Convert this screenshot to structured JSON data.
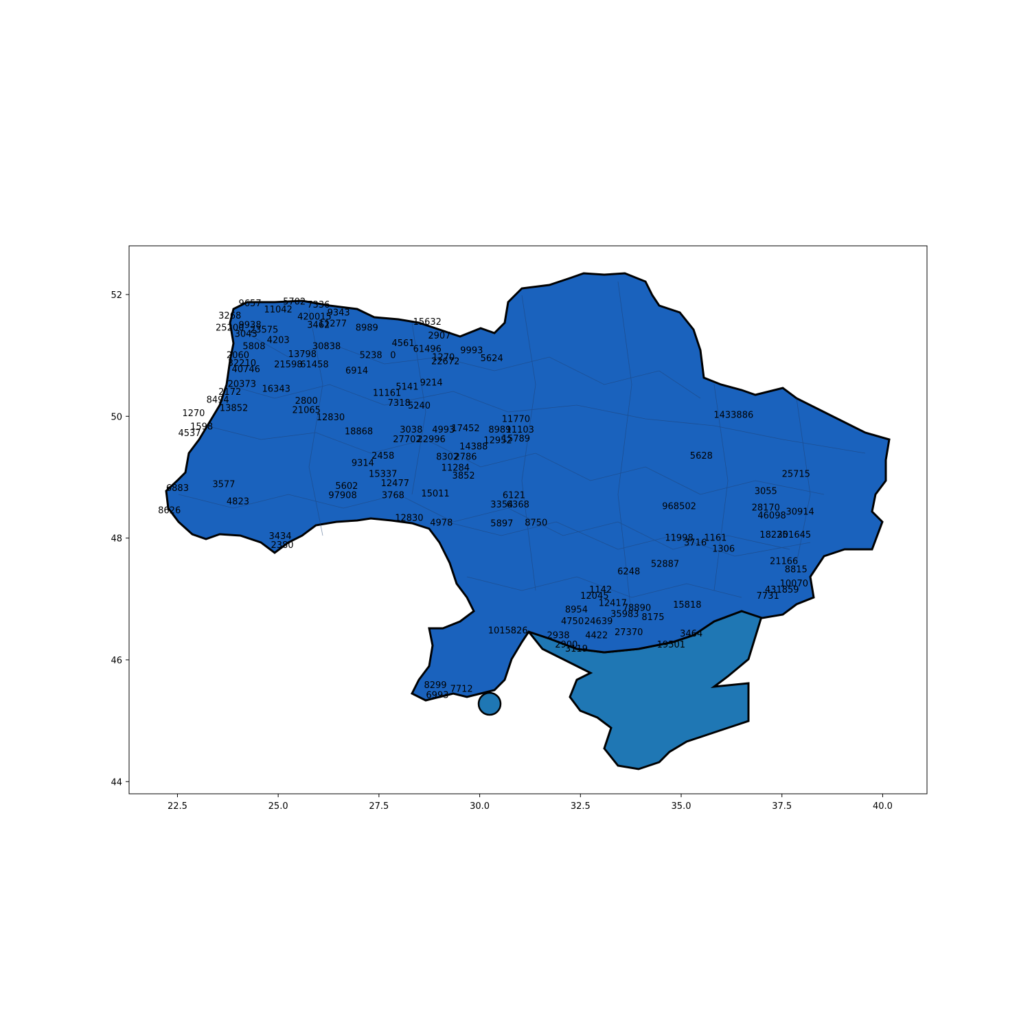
{
  "map": {
    "x_ticks": [
      "22.5",
      "25.0",
      "27.5",
      "30.0",
      "32.5",
      "35.0",
      "37.5",
      "40.0"
    ],
    "y_ticks": [
      "44",
      "46",
      "48",
      "50",
      "52"
    ],
    "xlim": [
      21.3,
      41.1
    ],
    "ylim": [
      43.8,
      52.8
    ],
    "colors": {
      "fill": "#1a62bd",
      "water_fill": "#1f77b4",
      "outline": "#000000"
    },
    "labels": [
      {
        "text": "9657",
        "lon": 24.3,
        "lat": 51.85
      },
      {
        "text": "5702",
        "lon": 25.4,
        "lat": 51.88
      },
      {
        "text": "7336",
        "lon": 26.0,
        "lat": 51.83
      },
      {
        "text": "11042",
        "lon": 25.0,
        "lat": 51.75
      },
      {
        "text": "9343",
        "lon": 26.5,
        "lat": 51.7
      },
      {
        "text": "3268",
        "lon": 23.8,
        "lat": 51.65
      },
      {
        "text": "420015",
        "lon": 25.9,
        "lat": 51.63
      },
      {
        "text": "9938",
        "lon": 24.3,
        "lat": 51.5
      },
      {
        "text": "3462",
        "lon": 26.0,
        "lat": 51.5
      },
      {
        "text": "11277",
        "lon": 26.35,
        "lat": 51.52
      },
      {
        "text": "8989",
        "lon": 27.2,
        "lat": 51.45
      },
      {
        "text": "25200",
        "lon": 23.8,
        "lat": 51.45
      },
      {
        "text": "23575",
        "lon": 24.65,
        "lat": 51.42
      },
      {
        "text": "3043",
        "lon": 24.2,
        "lat": 51.35
      },
      {
        "text": "15632",
        "lon": 28.7,
        "lat": 51.55
      },
      {
        "text": "2907",
        "lon": 29.0,
        "lat": 51.32
      },
      {
        "text": "4561",
        "lon": 28.1,
        "lat": 51.2
      },
      {
        "text": "4203",
        "lon": 25.0,
        "lat": 51.25
      },
      {
        "text": "30838",
        "lon": 26.2,
        "lat": 51.15
      },
      {
        "text": "5808",
        "lon": 24.4,
        "lat": 51.15
      },
      {
        "text": "61496",
        "lon": 28.7,
        "lat": 51.1
      },
      {
        "text": "9993",
        "lon": 29.8,
        "lat": 51.08
      },
      {
        "text": "13798",
        "lon": 25.6,
        "lat": 51.02
      },
      {
        "text": "2060",
        "lon": 24.0,
        "lat": 51.0
      },
      {
        "text": "5238",
        "lon": 27.3,
        "lat": 51.0
      },
      {
        "text": "0",
        "lon": 27.85,
        "lat": 51.0
      },
      {
        "text": "1270",
        "lon": 29.1,
        "lat": 50.97
      },
      {
        "text": "5624",
        "lon": 30.3,
        "lat": 50.95
      },
      {
        "text": "22672",
        "lon": 29.15,
        "lat": 50.9
      },
      {
        "text": "32210",
        "lon": 24.1,
        "lat": 50.87
      },
      {
        "text": "21598",
        "lon": 25.25,
        "lat": 50.85
      },
      {
        "text": "61458",
        "lon": 25.9,
        "lat": 50.85
      },
      {
        "text": "6914",
        "lon": 26.95,
        "lat": 50.75
      },
      {
        "text": "40746",
        "lon": 24.2,
        "lat": 50.77
      },
      {
        "text": "20373",
        "lon": 24.1,
        "lat": 50.53
      },
      {
        "text": "9214",
        "lon": 28.8,
        "lat": 50.55
      },
      {
        "text": "5141",
        "lon": 28.2,
        "lat": 50.48
      },
      {
        "text": "1433886",
        "lon": 36.3,
        "lat": 50.02
      },
      {
        "text": "16343",
        "lon": 24.95,
        "lat": 50.45
      },
      {
        "text": "2800",
        "lon": 25.7,
        "lat": 50.25
      },
      {
        "text": "11161",
        "lon": 27.7,
        "lat": 50.38
      },
      {
        "text": "8494",
        "lon": 23.5,
        "lat": 50.27
      },
      {
        "text": "2172",
        "lon": 23.8,
        "lat": 50.4
      },
      {
        "text": "7318",
        "lon": 28.0,
        "lat": 50.22
      },
      {
        "text": "5240",
        "lon": 28.5,
        "lat": 50.17
      },
      {
        "text": "13852",
        "lon": 23.9,
        "lat": 50.13
      },
      {
        "text": "21065",
        "lon": 25.7,
        "lat": 50.1
      },
      {
        "text": "12830",
        "lon": 26.3,
        "lat": 49.98
      },
      {
        "text": "1270",
        "lon": 22.9,
        "lat": 50.05
      },
      {
        "text": "11770",
        "lon": 30.9,
        "lat": 49.95
      },
      {
        "text": "4993",
        "lon": 29.1,
        "lat": 49.78
      },
      {
        "text": "17452",
        "lon": 29.65,
        "lat": 49.8
      },
      {
        "text": "8989",
        "lon": 30.5,
        "lat": 49.78
      },
      {
        "text": "11103",
        "lon": 31.0,
        "lat": 49.78
      },
      {
        "text": "18868",
        "lon": 27.0,
        "lat": 49.75
      },
      {
        "text": "27702",
        "lon": 28.2,
        "lat": 49.62
      },
      {
        "text": "22996",
        "lon": 28.8,
        "lat": 49.62
      },
      {
        "text": "15789",
        "lon": 30.9,
        "lat": 49.63
      },
      {
        "text": "12952",
        "lon": 30.45,
        "lat": 49.6
      },
      {
        "text": "3038",
        "lon": 28.3,
        "lat": 49.78
      },
      {
        "text": "14388",
        "lon": 29.85,
        "lat": 49.5
      },
      {
        "text": "5628",
        "lon": 35.5,
        "lat": 49.35
      },
      {
        "text": "2786",
        "lon": 29.65,
        "lat": 49.33
      },
      {
        "text": "8302",
        "lon": 29.2,
        "lat": 49.33
      },
      {
        "text": "11284",
        "lon": 29.4,
        "lat": 49.15
      },
      {
        "text": "3852",
        "lon": 29.6,
        "lat": 49.02
      },
      {
        "text": "25715",
        "lon": 37.85,
        "lat": 49.05
      },
      {
        "text": "2458",
        "lon": 27.6,
        "lat": 49.35
      },
      {
        "text": "9314",
        "lon": 27.1,
        "lat": 49.23
      },
      {
        "text": "15337",
        "lon": 27.6,
        "lat": 49.05
      },
      {
        "text": "6121",
        "lon": 30.85,
        "lat": 48.7
      },
      {
        "text": "12477",
        "lon": 27.9,
        "lat": 48.9
      },
      {
        "text": "3768",
        "lon": 27.85,
        "lat": 48.7
      },
      {
        "text": "15011",
        "lon": 28.9,
        "lat": 48.73
      },
      {
        "text": "3354",
        "lon": 30.55,
        "lat": 48.55
      },
      {
        "text": "6368",
        "lon": 30.95,
        "lat": 48.55
      },
      {
        "text": "968502",
        "lon": 34.95,
        "lat": 48.52
      },
      {
        "text": "3055",
        "lon": 37.1,
        "lat": 48.77
      },
      {
        "text": "30914",
        "lon": 37.95,
        "lat": 48.43
      },
      {
        "text": "28170",
        "lon": 37.1,
        "lat": 48.5
      },
      {
        "text": "46098",
        "lon": 37.25,
        "lat": 48.37
      },
      {
        "text": "12830",
        "lon": 28.25,
        "lat": 48.33
      },
      {
        "text": "4978",
        "lon": 29.05,
        "lat": 48.25
      },
      {
        "text": "5897",
        "lon": 30.55,
        "lat": 48.24
      },
      {
        "text": "8750",
        "lon": 31.4,
        "lat": 48.25
      },
      {
        "text": "11998",
        "lon": 34.95,
        "lat": 48.0
      },
      {
        "text": "1161",
        "lon": 35.85,
        "lat": 48.0
      },
      {
        "text": "18225",
        "lon": 37.3,
        "lat": 48.05
      },
      {
        "text": "301645",
        "lon": 37.8,
        "lat": 48.05
      },
      {
        "text": "3716",
        "lon": 35.35,
        "lat": 47.92
      },
      {
        "text": "1306",
        "lon": 36.05,
        "lat": 47.82
      },
      {
        "text": "52887",
        "lon": 34.6,
        "lat": 47.57
      },
      {
        "text": "6248",
        "lon": 33.7,
        "lat": 47.45
      },
      {
        "text": "21166",
        "lon": 37.55,
        "lat": 47.62
      },
      {
        "text": "8815",
        "lon": 37.85,
        "lat": 47.48
      },
      {
        "text": "10070",
        "lon": 37.8,
        "lat": 47.25
      },
      {
        "text": "431859",
        "lon": 37.5,
        "lat": 47.15
      },
      {
        "text": "7731",
        "lon": 37.15,
        "lat": 47.05
      },
      {
        "text": "1142",
        "lon": 33.0,
        "lat": 47.15
      },
      {
        "text": "12045",
        "lon": 32.85,
        "lat": 47.05
      },
      {
        "text": "12417",
        "lon": 33.3,
        "lat": 46.93
      },
      {
        "text": "15818",
        "lon": 35.15,
        "lat": 46.9
      },
      {
        "text": "78890",
        "lon": 33.9,
        "lat": 46.85
      },
      {
        "text": "8954",
        "lon": 32.4,
        "lat": 46.82
      },
      {
        "text": "35983",
        "lon": 33.6,
        "lat": 46.75
      },
      {
        "text": "8175",
        "lon": 34.3,
        "lat": 46.7
      },
      {
        "text": "4750",
        "lon": 32.3,
        "lat": 46.63
      },
      {
        "text": "24639",
        "lon": 32.95,
        "lat": 46.63
      },
      {
        "text": "1015826",
        "lon": 30.7,
        "lat": 46.48
      },
      {
        "text": "27370",
        "lon": 33.7,
        "lat": 46.45
      },
      {
        "text": "3464",
        "lon": 35.25,
        "lat": 46.43
      },
      {
        "text": "2938",
        "lon": 31.95,
        "lat": 46.4
      },
      {
        "text": "4422",
        "lon": 32.9,
        "lat": 46.4
      },
      {
        "text": "19501",
        "lon": 34.75,
        "lat": 46.25
      },
      {
        "text": "2900",
        "lon": 32.15,
        "lat": 46.25
      },
      {
        "text": "3119",
        "lon": 32.4,
        "lat": 46.18
      },
      {
        "text": "8299",
        "lon": 28.9,
        "lat": 45.58
      },
      {
        "text": "6993",
        "lon": 28.95,
        "lat": 45.42
      },
      {
        "text": "7712",
        "lon": 29.55,
        "lat": 45.52
      },
      {
        "text": "97908",
        "lon": 26.6,
        "lat": 48.7
      },
      {
        "text": "5602",
        "lon": 26.7,
        "lat": 48.85
      },
      {
        "text": "2380",
        "lon": 25.1,
        "lat": 47.88
      },
      {
        "text": "3434",
        "lon": 25.05,
        "lat": 48.03
      },
      {
        "text": "3577",
        "lon": 23.65,
        "lat": 48.88
      },
      {
        "text": "6883",
        "lon": 22.5,
        "lat": 48.82
      },
      {
        "text": "4823",
        "lon": 24.0,
        "lat": 48.6
      },
      {
        "text": "8626",
        "lon": 22.3,
        "lat": 48.45
      },
      {
        "text": "4537",
        "lon": 22.8,
        "lat": 49.72
      },
      {
        "text": "1598",
        "lon": 23.1,
        "lat": 49.83
      }
    ]
  }
}
